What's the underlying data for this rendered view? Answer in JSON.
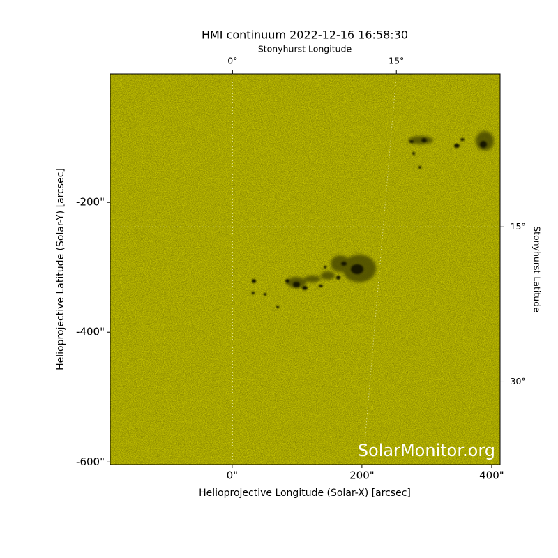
{
  "chart_data": {
    "type": "image",
    "title": "HMI continuum 2022-12-16 16:58:30",
    "xlabel": "Helioprojective Longitude (Solar-X) [arcsec]",
    "ylabel": "Helioprojective Latitude (Solar-Y) [arcsec]",
    "x2label": "Stonyhurst Longitude",
    "y2label": "Stonyhurst Latitude",
    "watermark": "SolarMonitor.org",
    "color": "#c6c400",
    "xlim": [
      -188,
      413
    ],
    "ylim": [
      -604,
      -2
    ],
    "xticks": [
      {
        "value": 0,
        "label": "0\""
      },
      {
        "value": 200,
        "label": "200\""
      },
      {
        "value": 400,
        "label": "400\""
      }
    ],
    "yticks": [
      {
        "value": -200,
        "label": "-200\""
      },
      {
        "value": -400,
        "label": "-400\""
      },
      {
        "value": -600,
        "label": "-600\""
      }
    ],
    "x2lim": [
      -11.2,
      24.5
    ],
    "x2ticks": [
      {
        "value": 0,
        "label": "0°"
      },
      {
        "value": 15,
        "label": "15°"
      }
    ],
    "y2lim": [
      -38,
      -0.2
    ],
    "y2ticks": [
      {
        "value": -15,
        "label": "-15°"
      },
      {
        "value": -30,
        "label": "-30°"
      }
    ],
    "grid": true
  }
}
